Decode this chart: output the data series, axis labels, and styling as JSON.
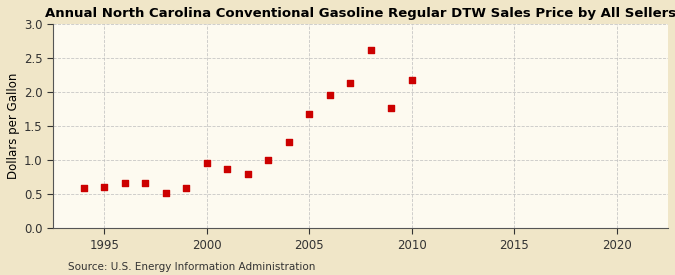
{
  "title": "Annual North Carolina Conventional Gasoline Regular DTW Sales Price by All Sellers",
  "ylabel": "Dollars per Gallon",
  "source": "Source: U.S. Energy Information Administration",
  "fig_background_color": "#f0e6c8",
  "plot_background_color": "#fdfaf0",
  "years": [
    1994,
    1995,
    1996,
    1997,
    1998,
    1999,
    2000,
    2001,
    2002,
    2003,
    2004,
    2005,
    2006,
    2007,
    2008,
    2009,
    2010
  ],
  "values": [
    0.59,
    0.61,
    0.67,
    0.67,
    0.51,
    0.59,
    0.96,
    0.87,
    0.8,
    1.0,
    1.27,
    1.68,
    1.96,
    2.13,
    2.62,
    1.76,
    2.18
  ],
  "marker_color": "#cc0000",
  "marker_size": 25,
  "xlim": [
    1992.5,
    2022.5
  ],
  "ylim": [
    0.0,
    3.0
  ],
  "xticks": [
    1995,
    2000,
    2005,
    2010,
    2015,
    2020
  ],
  "yticks": [
    0.0,
    0.5,
    1.0,
    1.5,
    2.0,
    2.5,
    3.0
  ],
  "grid_color": "#bbbbbb",
  "title_fontsize": 9.5,
  "axis_fontsize": 8.5,
  "source_fontsize": 7.5
}
